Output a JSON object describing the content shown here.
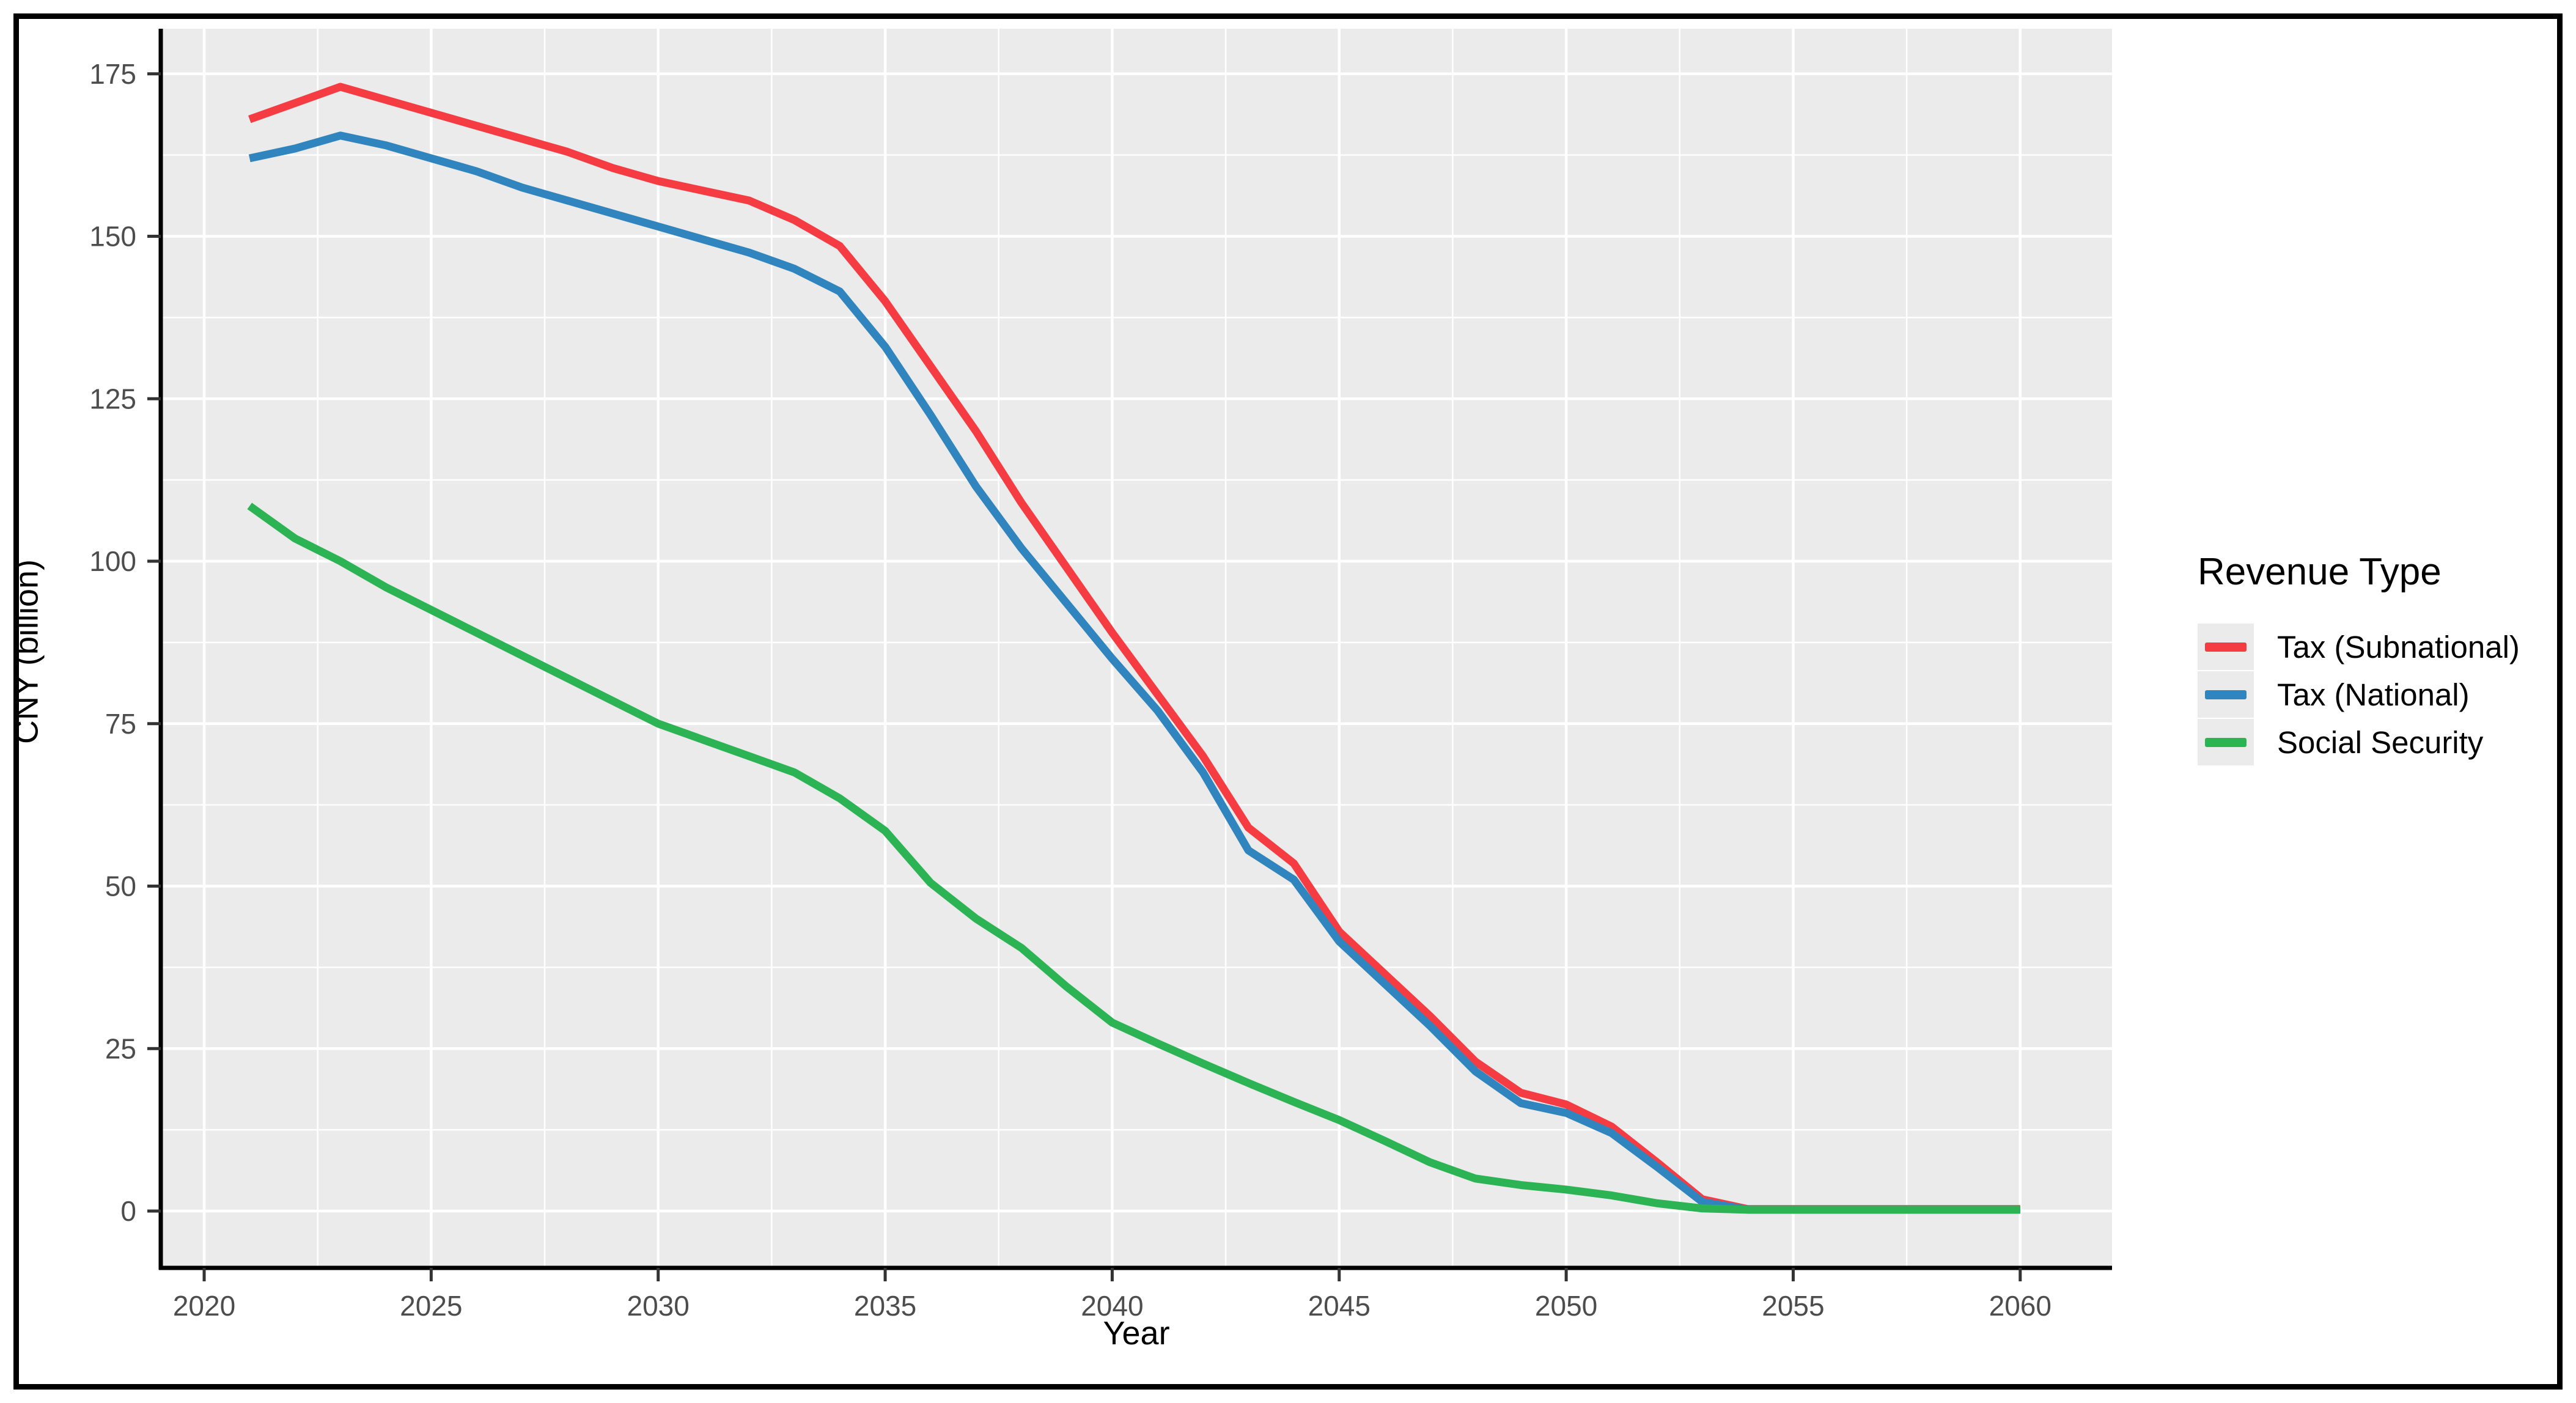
{
  "axes": {
    "x": {
      "label": "Year"
    },
    "y": {
      "label": "CNY (billion)"
    }
  },
  "legend": {
    "title": "Revenue Type",
    "items": [
      {
        "label": "Tax (Subnational)",
        "color": "#f63c43"
      },
      {
        "label": "Tax (National)",
        "color": "#3085be"
      },
      {
        "label": "Social Security",
        "color": "#2cb454"
      }
    ]
  },
  "chart_data": {
    "type": "line",
    "title": "",
    "xlabel": "Year",
    "ylabel": "CNY (billion)",
    "xlim": [
      2020,
      2060
    ],
    "ylim": [
      0,
      175
    ],
    "grid": "on",
    "legend_position": "right",
    "panel_bg": "#ebebeb",
    "grid_color": "#ffffff",
    "axis_color": "#000000",
    "tick_label_color": "#4d4d4d",
    "x_major_ticks": [
      2020,
      2025,
      2030,
      2035,
      2040,
      2045,
      2050,
      2055,
      2060
    ],
    "y_major_ticks": [
      0,
      25,
      50,
      75,
      100,
      125,
      150,
      175
    ],
    "x": [
      2021,
      2022,
      2023,
      2024,
      2025,
      2026,
      2027,
      2028,
      2029,
      2030,
      2031,
      2032,
      2033,
      2034,
      2035,
      2036,
      2037,
      2038,
      2039,
      2040,
      2041,
      2042,
      2043,
      2044,
      2045,
      2046,
      2047,
      2048,
      2049,
      2050,
      2051,
      2052,
      2053,
      2054,
      2055,
      2056,
      2057,
      2058,
      2059,
      2060
    ],
    "series": [
      {
        "name": "Tax (Subnational)",
        "color": "#f63c43",
        "values": [
          168,
          170.5,
          173,
          171,
          169,
          167,
          165,
          163,
          160.5,
          158.5,
          157,
          155.5,
          152.5,
          148.5,
          140,
          130,
          120,
          109,
          99,
          89,
          79.5,
          70,
          59,
          53.5,
          43,
          36.5,
          30,
          23,
          18.2,
          16.4,
          13,
          7.5,
          1.8,
          0.3,
          0.3,
          0.3,
          0.3,
          0.3,
          0.3,
          0.3
        ]
      },
      {
        "name": "Tax (National)",
        "color": "#3085be",
        "values": [
          162,
          163.5,
          165.5,
          164,
          162,
          160,
          157.5,
          155.5,
          153.5,
          151.5,
          149.5,
          147.5,
          145,
          141.5,
          133,
          122.5,
          111.5,
          102,
          93.5,
          85,
          77,
          67.5,
          55.5,
          51,
          41.5,
          35,
          28.5,
          21.5,
          16.6,
          15.1,
          12,
          6.8,
          1.4,
          0.2,
          0.2,
          0.2,
          0.2,
          0.2,
          0.2,
          0.2
        ]
      },
      {
        "name": "Social Security",
        "color": "#2cb454",
        "values": [
          108.5,
          103.5,
          100,
          96,
          92.5,
          89,
          85.5,
          82,
          78.5,
          75,
          72.5,
          70,
          67.5,
          63.5,
          58.5,
          50.5,
          45,
          40.5,
          34.5,
          29,
          25.8,
          22.7,
          19.7,
          16.8,
          14,
          10.8,
          7.5,
          5,
          4,
          3.3,
          2.4,
          1.2,
          0.4,
          0.2,
          0.2,
          0.2,
          0.2,
          0.2,
          0.2,
          0.2
        ]
      }
    ]
  }
}
